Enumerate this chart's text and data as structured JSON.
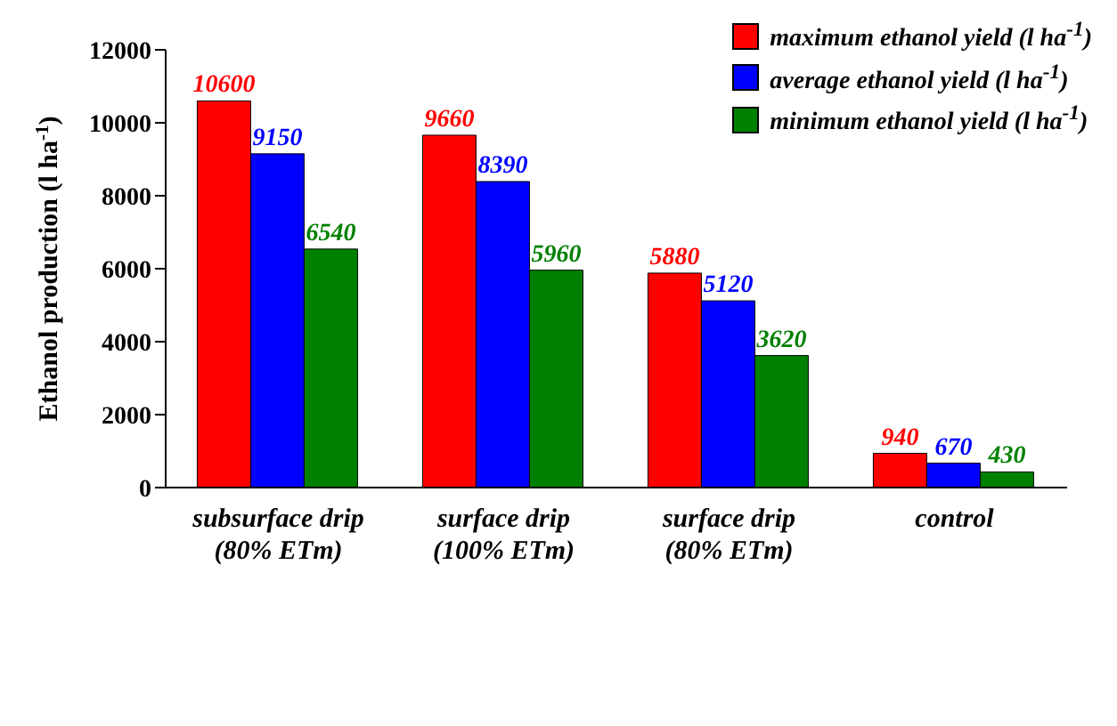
{
  "chart_data": {
    "type": "bar",
    "ylabel": "Ethanol production (l ha$^{-1}$)",
    "categories": [
      "subsurface drip\n(80% ETm)",
      "surface drip\n(100% ETm)",
      "surface drip\n(80% ETm)",
      "control"
    ],
    "series": [
      {
        "name": "maximum ethanol yield (l ha$^{-1}$)",
        "color": "#ff0000",
        "values": [
          10600,
          9660,
          5880,
          940
        ]
      },
      {
        "name": "average ethanol yield (l ha$^{-1}$)",
        "color": "#0000ff",
        "values": [
          9150,
          8390,
          5120,
          670
        ]
      },
      {
        "name": "minimum ethanol yield (l ha$^{-1}$)",
        "color": "#008000",
        "values": [
          6540,
          5960,
          3620,
          430
        ]
      }
    ],
    "ylim": [
      0,
      12000
    ],
    "yticks": [
      0,
      2000,
      4000,
      6000,
      8000,
      10000,
      12000
    ],
    "grid": false,
    "legend": "top right",
    "data_labels": true
  }
}
